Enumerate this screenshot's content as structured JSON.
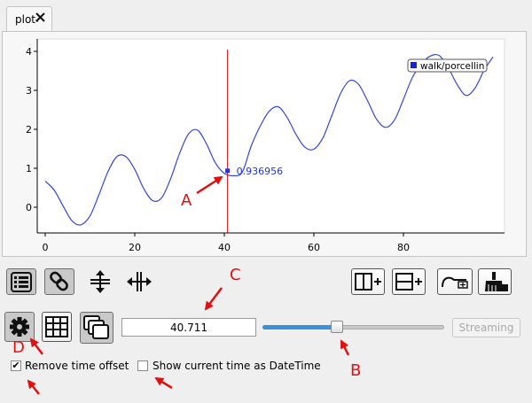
{
  "tab": {
    "label": "plot",
    "close_icon": "close-icon"
  },
  "chart_data": {
    "type": "line",
    "title": "",
    "xlabel": "",
    "ylabel": "",
    "xlim": [
      0,
      100
    ],
    "ylim": [
      -0.5,
      4.2
    ],
    "x_ticks": [
      0,
      20,
      40,
      60,
      80
    ],
    "y_ticks": [
      0,
      1,
      2,
      3,
      4
    ],
    "grid": false,
    "legend_position": "top-right",
    "series": [
      {
        "name": "walk/porcellin",
        "color": "#3345e0",
        "x": [
          0,
          2,
          4,
          6,
          8,
          10,
          12,
          14,
          16,
          18,
          20,
          22,
          24,
          26,
          28,
          30,
          32,
          34,
          36,
          38,
          40,
          42,
          44,
          46,
          48,
          50,
          52,
          54,
          56,
          58,
          60,
          62,
          64,
          66,
          68,
          70,
          72,
          74,
          76,
          78,
          80,
          82,
          84,
          86,
          88,
          90,
          92,
          94,
          96,
          98,
          100
        ],
        "y": [
          0.67,
          0.44,
          0.03,
          -0.35,
          -0.45,
          -0.22,
          0.32,
          0.91,
          1.3,
          1.3,
          0.97,
          0.48,
          0.17,
          0.24,
          0.73,
          1.38,
          1.88,
          1.98,
          1.63,
          1.14,
          0.87,
          0.81,
          0.9,
          1.57,
          2.08,
          2.46,
          2.58,
          2.31,
          1.87,
          1.54,
          1.49,
          1.78,
          2.35,
          2.93,
          3.25,
          3.15,
          2.73,
          2.26,
          2.05,
          2.24,
          2.77,
          3.33,
          3.68,
          3.88,
          3.89,
          3.58,
          3.15,
          2.87,
          3.06,
          3.51,
          3.86
        ]
      }
    ],
    "cursor": {
      "x": 40.711,
      "value_label": "0.936956",
      "point_y": 0.937,
      "color": "#dd1111"
    }
  },
  "toolbar": {
    "row1_left": [
      "legend-icon",
      "link-icon",
      "vertical-zoom-icon",
      "horizontal-zoom-icon"
    ],
    "row1_right": [
      "split-vertical-icon",
      "split-horizontal-icon",
      "add-curve-icon",
      "clear-icon"
    ]
  },
  "time": {
    "value": "40.711",
    "slider_fraction": 0.41,
    "streaming_label": "Streaming"
  },
  "options": {
    "remove_time_offset": {
      "label": "Remove time offset",
      "checked": true
    },
    "show_datetime": {
      "label": "Show current time as DateTime",
      "checked": false
    }
  },
  "annotations": {
    "a": "A",
    "b": "B",
    "c": "C",
    "d": "D",
    "color": "#e01010"
  }
}
